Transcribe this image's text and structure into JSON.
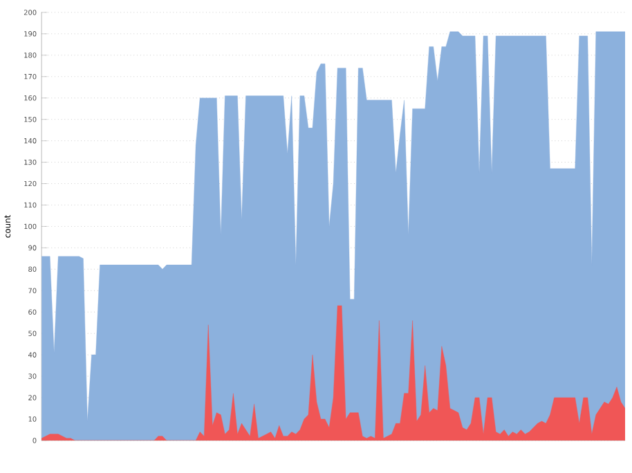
{
  "chart_data": {
    "type": "area",
    "ylabel": "count",
    "categories": [
      null,
      null,
      null,
      null,
      null,
      null,
      null,
      null,
      null,
      null,
      null,
      null,
      null,
      null,
      null,
      null,
      null,
      null,
      null,
      null,
      null,
      null,
      null,
      null,
      null,
      null,
      null,
      null,
      null,
      null,
      null,
      null,
      null,
      null,
      null,
      null,
      null,
      null,
      null,
      null,
      null,
      null,
      null,
      null,
      null,
      null,
      null,
      null,
      null,
      null,
      null,
      null,
      null,
      null,
      null,
      null,
      null,
      null,
      null,
      null,
      null,
      null,
      null,
      null,
      null,
      null,
      null,
      null,
      null,
      null,
      null,
      null,
      null,
      null,
      null,
      null,
      null,
      null,
      null,
      null,
      null,
      null,
      null,
      null,
      null,
      null,
      null,
      null,
      null,
      null,
      null,
      null,
      null,
      null,
      null,
      null,
      null,
      null,
      null,
      null,
      null,
      null,
      null,
      null,
      null,
      null,
      null,
      null,
      null,
      null,
      null,
      null,
      null,
      null,
      null,
      null,
      null,
      null,
      null,
      null,
      null,
      null,
      null,
      null,
      null,
      null,
      null,
      null,
      null,
      null,
      null,
      null,
      null,
      null,
      null,
      null,
      null,
      null,
      null,
      null,
      null
    ],
    "series": [
      {
        "color": "#8cb1dd",
        "values": [
          86,
          86,
          86,
          41,
          86,
          86,
          86,
          86,
          86,
          86,
          85,
          9,
          40,
          40,
          82,
          82,
          82,
          82,
          82,
          82,
          82,
          82,
          82,
          82,
          82,
          82,
          82,
          82,
          82,
          80,
          82,
          82,
          82,
          82,
          82,
          82,
          82,
          138,
          160,
          160,
          160,
          160,
          160,
          96,
          161,
          161,
          161,
          161,
          103,
          161,
          161,
          161,
          161,
          161,
          161,
          161,
          161,
          161,
          161,
          134,
          161,
          82,
          161,
          161,
          146,
          146,
          172,
          176,
          176,
          100,
          120,
          174,
          174,
          174,
          66,
          66,
          174,
          174,
          159,
          159,
          159,
          159,
          159,
          159,
          159,
          125,
          143,
          159,
          96,
          155,
          155,
          155,
          155,
          184,
          184,
          168,
          184,
          184,
          191,
          191,
          191,
          189,
          189,
          189,
          189,
          125,
          189,
          189,
          125,
          189,
          189,
          189,
          189,
          189,
          189,
          189,
          189,
          189,
          189,
          189,
          189,
          189,
          127,
          127,
          127,
          127,
          127,
          127,
          127,
          189,
          189,
          189,
          82,
          191,
          191,
          191,
          191,
          191,
          191,
          191,
          191
        ]
      },
      {
        "color": "#f05656",
        "values": [
          1,
          2,
          3,
          3,
          3,
          2,
          1,
          1,
          0,
          0,
          0,
          0,
          0,
          0,
          0,
          0,
          0,
          0,
          0,
          0,
          0,
          0,
          0,
          0,
          0,
          0,
          0,
          0,
          2,
          2,
          0,
          0,
          0,
          0,
          0,
          0,
          0,
          0,
          4,
          2,
          54,
          7,
          13,
          12,
          3,
          5,
          22,
          3,
          8,
          5,
          2,
          17,
          1,
          2,
          3,
          4,
          1,
          7,
          2,
          2,
          4,
          3,
          5,
          10,
          12,
          40,
          18,
          10,
          10,
          6,
          20,
          63,
          63,
          10,
          13,
          13,
          13,
          2,
          1,
          2,
          1,
          56,
          1,
          2,
          3,
          8,
          8,
          22,
          22,
          56,
          9,
          12,
          35,
          13,
          15,
          14,
          44,
          35,
          15,
          14,
          13,
          6,
          5,
          8,
          20,
          20,
          3,
          20,
          20,
          4,
          3,
          5,
          2,
          4,
          3,
          5,
          3,
          4,
          6,
          8,
          9,
          8,
          12,
          20,
          20,
          20,
          20,
          20,
          20,
          8,
          20,
          20,
          3,
          12,
          15,
          18,
          17,
          20,
          25,
          18,
          15
        ]
      }
    ],
    "ylim": [
      0,
      200
    ],
    "yticks": [
      0,
      10,
      20,
      30,
      40,
      50,
      60,
      70,
      80,
      90,
      100,
      110,
      120,
      130,
      140,
      150,
      160,
      170,
      180,
      190,
      200
    ],
    "grid": "y",
    "tick_labels": "y"
  }
}
